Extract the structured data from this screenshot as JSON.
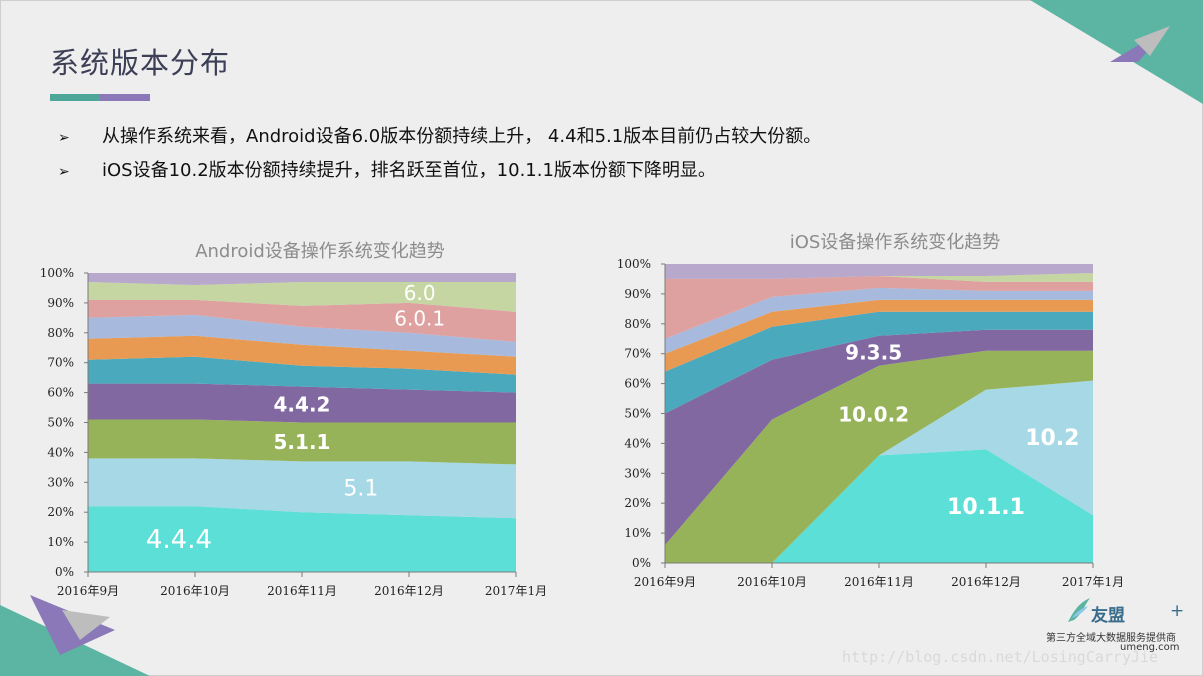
{
  "slide": {
    "title": "系统版本分布",
    "bar_colors": [
      "#4ea699",
      "#8a78b8"
    ],
    "bullet_marker": "➢",
    "bullets": [
      "从操作系统来看，Android设备6.0版本份额持续上升， 4.4和5.1版本目前仍占较大份额。",
      "iOS设备10.2版本份额持续提升，排名跃至首位，10.1.1版本份额下降明显。"
    ]
  },
  "chart_data": [
    {
      "type": "area",
      "stacked": true,
      "title": "Android设备操作系统变化趋势",
      "categories": [
        "2016年9月",
        "2016年10月",
        "2016年11月",
        "2016年12月",
        "2017年1月"
      ],
      "ylim": [
        0,
        100
      ],
      "yticks": [
        "0%",
        "10%",
        "20%",
        "30%",
        "40%",
        "50%",
        "60%",
        "70%",
        "80%",
        "90%",
        "100%"
      ],
      "series": [
        {
          "name": "4.4.4",
          "color": "#5cdfd6",
          "values": [
            22,
            22,
            20,
            19,
            18
          ]
        },
        {
          "name": "5.1",
          "color": "#a6d8e6",
          "values": [
            16,
            16,
            17,
            18,
            18
          ]
        },
        {
          "name": "5.1.1",
          "color": "#97b35a",
          "values": [
            13,
            13,
            13,
            13,
            14
          ]
        },
        {
          "name": "4.4.2",
          "color": "#8168a0",
          "values": [
            12,
            12,
            12,
            11,
            10
          ]
        },
        {
          "name": "",
          "color": "#4aa9bd",
          "values": [
            8,
            9,
            7,
            7,
            6
          ]
        },
        {
          "name": "",
          "color": "#e99a52",
          "values": [
            7,
            7,
            7,
            6,
            6
          ]
        },
        {
          "name": "",
          "color": "#a7b9dc",
          "values": [
            7,
            7,
            6,
            6,
            5
          ]
        },
        {
          "name": "6.0.1",
          "color": "#dea1a0",
          "values": [
            6,
            5,
            7,
            10,
            10
          ]
        },
        {
          "name": "6.0",
          "color": "#c5d6a2",
          "values": [
            6,
            5,
            8,
            7,
            10
          ]
        },
        {
          "name": "",
          "color": "#b7a8cc",
          "values": [
            3,
            4,
            3,
            3,
            3
          ]
        }
      ],
      "labels": [
        {
          "text": "6.0",
          "series": 8,
          "x": 3.1,
          "color": "#ffffff",
          "bold": false,
          "size": 20
        },
        {
          "text": "6.0.1",
          "series": 7,
          "x": 3.1,
          "color": "#ffffff",
          "bold": false,
          "size": 20
        },
        {
          "text": "4.4.2",
          "series": 3,
          "x": 2.0,
          "color": "#ffffff",
          "bold": true,
          "size": 20
        },
        {
          "text": "5.1.1",
          "series": 2,
          "x": 2.0,
          "color": "#ffffff",
          "bold": true,
          "size": 20
        },
        {
          "text": "5.1",
          "series": 1,
          "x": 2.55,
          "color": "#ffffff",
          "bold": false,
          "size": 22
        },
        {
          "text": "4.4.4",
          "series": 0,
          "x": 0.85,
          "color": "#ffffff",
          "bold": false,
          "size": 26
        }
      ]
    },
    {
      "type": "area",
      "stacked": true,
      "title": "iOS设备操作系统变化趋势",
      "categories": [
        "2016年9月",
        "2016年10月",
        "2016年11月",
        "2016年12月",
        "2017年1月"
      ],
      "ylim": [
        0,
        100
      ],
      "yticks": [
        "0%",
        "10%",
        "20%",
        "30%",
        "40%",
        "50%",
        "60%",
        "70%",
        "80%",
        "90%",
        "100%"
      ],
      "series": [
        {
          "name": "10.1.1",
          "color": "#5cdfd6",
          "values": [
            0,
            0,
            36,
            38,
            16
          ]
        },
        {
          "name": "10.2",
          "color": "#a6d8e6",
          "values": [
            0,
            0,
            0,
            20,
            45
          ]
        },
        {
          "name": "10.0.2",
          "color": "#97b35a",
          "values": [
            6,
            48,
            30,
            13,
            10
          ]
        },
        {
          "name": "9.3.5",
          "color": "#8168a0",
          "values": [
            44,
            20,
            10,
            7,
            7
          ]
        },
        {
          "name": "",
          "color": "#4aa9bd",
          "values": [
            14,
            11,
            8,
            6,
            6
          ]
        },
        {
          "name": "",
          "color": "#e99a52",
          "values": [
            6,
            5,
            4,
            4,
            4
          ]
        },
        {
          "name": "",
          "color": "#a7b9dc",
          "values": [
            5,
            5,
            4,
            3,
            3
          ]
        },
        {
          "name": "",
          "color": "#dea1a0",
          "values": [
            20,
            6,
            4,
            3,
            3
          ]
        },
        {
          "name": "",
          "color": "#c5d6a2",
          "values": [
            0,
            0,
            0,
            2,
            3
          ]
        },
        {
          "name": "",
          "color": "#b7a8cc",
          "values": [
            5,
            5,
            4,
            4,
            3
          ]
        }
      ],
      "labels": [
        {
          "text": "9.3.5",
          "series": 3,
          "x": 1.95,
          "color": "#ffffff",
          "bold": true,
          "size": 20
        },
        {
          "text": "10.0.2",
          "series": 2,
          "x": 1.95,
          "color": "#ffffff",
          "bold": true,
          "size": 20
        },
        {
          "text": "10.2",
          "series": 1,
          "x": 3.62,
          "color": "#ffffff",
          "bold": true,
          "size": 22
        },
        {
          "text": "10.1.1",
          "series": 0,
          "x": 3.0,
          "color": "#ffffff",
          "bold": true,
          "size": 22
        }
      ]
    }
  ],
  "branding": {
    "logo_name": "友盟",
    "logo_plus": "+",
    "logo_sub": "第三方全域大数据服务提供商",
    "logo_url": "umeng.com",
    "watermark": "http://blog.csdn.net/LosingCarryJie",
    "accent_colors": [
      "#5bb5a2",
      "#8a78b8",
      "#bdbdbd"
    ]
  }
}
